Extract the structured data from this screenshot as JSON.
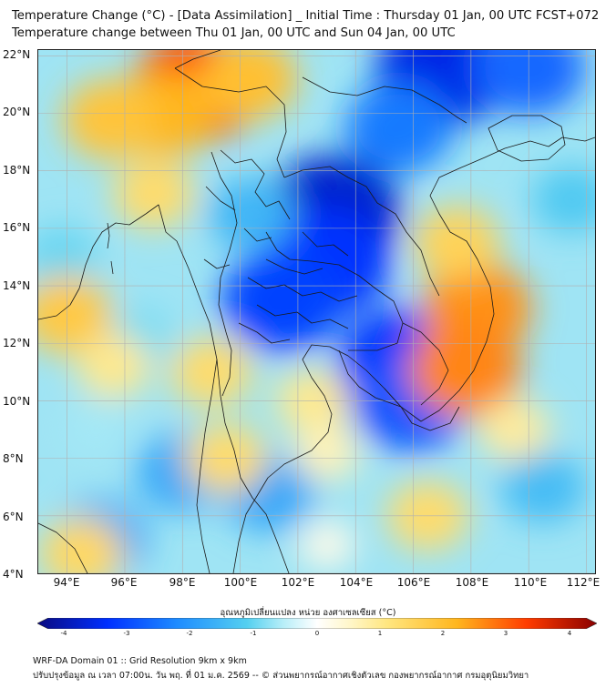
{
  "title": {
    "line1": "Temperature Change (°C) - [Data Assimilation] _ Initial Time : Thursday 01 Jan, 00 UTC FCST+072",
    "line2": "Temperature change between Thu 01 Jan, 00 UTC and Sun 04 Jan, 00 UTC"
  },
  "map": {
    "lat_labels": [
      "22°N",
      "20°N",
      "18°N",
      "16°N",
      "14°N",
      "12°N",
      "10°N",
      "8°N",
      "6°N",
      "4°N"
    ],
    "lon_labels": [
      "94°E",
      "96°E",
      "98°E",
      "100°E",
      "102°E",
      "104°E",
      "106°E",
      "108°E",
      "110°E",
      "112°E"
    ],
    "extent": {
      "lon_min": 93.0,
      "lon_max": 112.3,
      "lat_min": 4.0,
      "lat_max": 22.2
    },
    "anomalies": [
      {
        "lon": 103.2,
        "lat": 16.5,
        "value": -3.4
      },
      {
        "lon": 103.0,
        "lat": 14.8,
        "value": -3.0
      },
      {
        "lon": 101.5,
        "lat": 13.5,
        "value": -2.8
      },
      {
        "lon": 105.6,
        "lat": 11.3,
        "value": -3.0
      },
      {
        "lon": 105.9,
        "lat": 10.0,
        "value": -2.6
      },
      {
        "lon": 107.0,
        "lat": 21.5,
        "value": -3.2
      },
      {
        "lon": 110.0,
        "lat": 21.6,
        "value": -2.4
      },
      {
        "lon": 105.5,
        "lat": 19.5,
        "value": -2.2
      },
      {
        "lon": 100.4,
        "lat": 16.5,
        "value": -1.4
      },
      {
        "lon": 98.0,
        "lat": 7.5,
        "value": -1.6
      },
      {
        "lon": 101.0,
        "lat": 6.8,
        "value": -1.6
      },
      {
        "lon": 95.2,
        "lat": 5.2,
        "value": -1.6
      },
      {
        "lon": 93.8,
        "lat": 15.0,
        "value": -0.9
      },
      {
        "lon": 95.0,
        "lat": 9.0,
        "value": -0.6
      },
      {
        "lon": 96.5,
        "lat": 12.2,
        "value": -0.8
      },
      {
        "lon": 110.5,
        "lat": 7.0,
        "value": -1.3
      },
      {
        "lon": 111.5,
        "lat": 17.0,
        "value": -1.1
      },
      {
        "lon": 98.5,
        "lat": 20.9,
        "value": 3.0
      },
      {
        "lon": 97.4,
        "lat": 20.0,
        "value": 2.0
      },
      {
        "lon": 95.5,
        "lat": 19.8,
        "value": 1.7
      },
      {
        "lon": 100.3,
        "lat": 21.2,
        "value": 1.8
      },
      {
        "lon": 97.0,
        "lat": 17.2,
        "value": 1.2
      },
      {
        "lon": 108.2,
        "lat": 13.2,
        "value": 2.3
      },
      {
        "lon": 107.8,
        "lat": 11.1,
        "value": 2.4
      },
      {
        "lon": 107.5,
        "lat": 15.5,
        "value": 1.4
      },
      {
        "lon": 94.0,
        "lat": 13.0,
        "value": 1.6
      },
      {
        "lon": 95.6,
        "lat": 11.2,
        "value": 0.9
      },
      {
        "lon": 99.0,
        "lat": 11.0,
        "value": 1.2
      },
      {
        "lon": 99.5,
        "lat": 8.0,
        "value": 1.2
      },
      {
        "lon": 102.5,
        "lat": 10.0,
        "value": 0.9
      },
      {
        "lon": 103.0,
        "lat": 8.2,
        "value": 0.6
      },
      {
        "lon": 106.5,
        "lat": 6.0,
        "value": 1.2
      },
      {
        "lon": 109.5,
        "lat": 9.0,
        "value": 0.8
      },
      {
        "lon": 94.5,
        "lat": 4.7,
        "value": 1.3
      },
      {
        "lon": 103.0,
        "lat": 5.0,
        "value": 0.2
      }
    ]
  },
  "colorbar": {
    "title": "อุณหภูมิเปลี่ยนแปลง หน่วย องศาเซลเซียส (°C)",
    "ticks": [
      "-4",
      "-3",
      "-2",
      "-1",
      "0",
      "1",
      "2",
      "3",
      "4"
    ],
    "min": -4,
    "max": 4,
    "colors": {
      "n4": "#0a0a80",
      "n3": "#0030ff",
      "n2": "#1e8cff",
      "n1": "#55d0f0",
      "n05": "#b8eef8",
      "zero": "#ffffff",
      "p05": "#fff6c8",
      "p1": "#ffe680",
      "p2": "#ffb61e",
      "p3": "#ff3c00",
      "p4": "#8a0000"
    }
  },
  "footer": {
    "line1": "WRF-DA Domain 01 :: Grid Resolution 9km x 9km",
    "line2": "ปรับปรุงข้อมูล ณ เวลา 07:00น. วัน พฤ. ที่ 01 ม.ค. 2569 -- © ส่วนพยากรณ์อากาศเชิงตัวเลข กองพยากรณ์อากาศ กรมอุตุนิยมวิทยา"
  }
}
